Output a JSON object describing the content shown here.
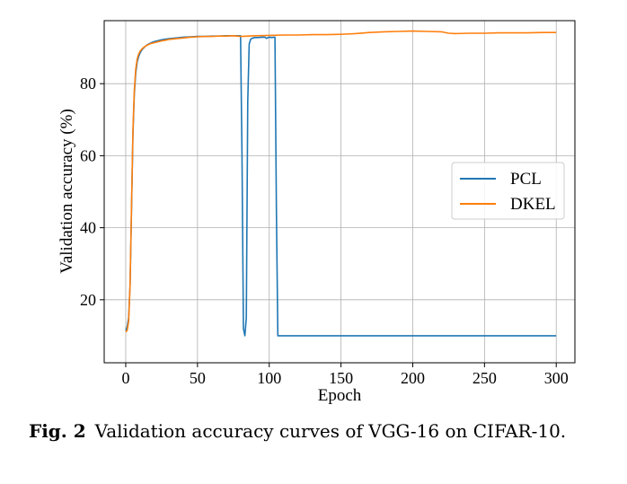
{
  "chart_data": {
    "type": "line",
    "title": "",
    "xlabel": "Epoch",
    "ylabel": "Validation accuracy (%)",
    "xlim": [
      -15,
      313
    ],
    "ylim": [
      2.5,
      97.5
    ],
    "xticks": [
      0,
      50,
      100,
      150,
      200,
      250,
      300
    ],
    "yticks": [
      20,
      40,
      60,
      80
    ],
    "grid": true,
    "legend": "center-right",
    "series": [
      {
        "name": "PCL",
        "color": "#1f77b4",
        "x": [
          0,
          1,
          2,
          3,
          4,
          5,
          6,
          7,
          8,
          9,
          10,
          11,
          12,
          13,
          14,
          15,
          16,
          18,
          20,
          22,
          25,
          28,
          30,
          35,
          40,
          45,
          50,
          55,
          60,
          65,
          70,
          75,
          79,
          80,
          81,
          82,
          83,
          84,
          85,
          86,
          87,
          88,
          90,
          92,
          95,
          97,
          98,
          100,
          102,
          103,
          104,
          105,
          106,
          150,
          200,
          250,
          300
        ],
        "y": [
          11.5,
          12.5,
          15,
          24,
          45,
          66,
          77,
          83,
          86,
          87.5,
          88.5,
          89.2,
          89.7,
          90.1,
          90.5,
          90.8,
          91,
          91.4,
          91.7,
          91.9,
          92.2,
          92.4,
          92.5,
          92.7,
          92.9,
          93,
          93.1,
          93.1,
          93.2,
          93.2,
          93.3,
          93.3,
          93.3,
          93.3,
          60,
          12,
          10,
          15,
          75,
          91,
          92.3,
          92.6,
          92.8,
          92.8,
          92.9,
          92.9,
          92.6,
          92.9,
          92.8,
          92.9,
          92.9,
          45,
          10,
          10,
          10,
          10,
          10
        ]
      },
      {
        "name": "DKEL",
        "color": "#ff7f0e",
        "x": [
          0,
          1,
          2,
          3,
          4,
          5,
          6,
          7,
          8,
          9,
          10,
          11,
          12,
          13,
          14,
          15,
          16,
          18,
          20,
          22,
          25,
          28,
          30,
          35,
          40,
          45,
          50,
          55,
          60,
          65,
          70,
          75,
          80,
          85,
          90,
          100,
          110,
          120,
          130,
          140,
          150,
          160,
          170,
          180,
          190,
          200,
          210,
          220,
          225,
          230,
          240,
          250,
          260,
          270,
          280,
          290,
          300
        ],
        "y": [
          11,
          11.5,
          14,
          24,
          46,
          67,
          78,
          84,
          86.8,
          88.2,
          89,
          89.5,
          89.9,
          90.2,
          90.5,
          90.7,
          90.9,
          91.2,
          91.4,
          91.6,
          91.9,
          92.1,
          92.3,
          92.5,
          92.7,
          92.9,
          93,
          93.1,
          93.1,
          93.2,
          93.2,
          93.3,
          93.1,
          93.2,
          93.3,
          93.4,
          93.5,
          93.5,
          93.6,
          93.6,
          93.7,
          93.9,
          94.2,
          94.4,
          94.5,
          94.6,
          94.5,
          94.4,
          94,
          93.9,
          94,
          94,
          94.1,
          94.1,
          94.1,
          94.2,
          94.2
        ]
      }
    ]
  },
  "caption": {
    "label": "Fig. 2",
    "text": "Validation accuracy curves of VGG-16 on CIFAR-10."
  }
}
